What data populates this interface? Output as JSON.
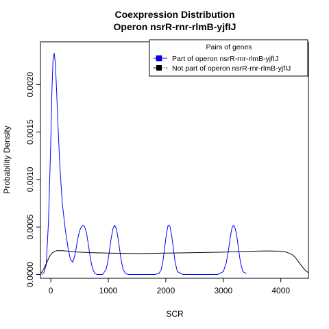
{
  "chart_data": {
    "type": "line",
    "title": "Coexpression Distribution",
    "subtitle": "Operon nsrR-rnr-rlmB-yjfIJ",
    "xlabel": "SCR",
    "ylabel": "Probability Density",
    "xlim": [
      -180,
      4480
    ],
    "ylim": [
      -4e-05,
      0.00245
    ],
    "x_ticks": [
      0,
      1000,
      2000,
      3000,
      4000
    ],
    "x_tick_labels": [
      "0",
      "1000",
      "2000",
      "3000",
      "4000"
    ],
    "y_ticks": [
      0,
      0.0005,
      0.001,
      0.0015,
      0.002
    ],
    "y_tick_labels": [
      "0.0000",
      "0.0005",
      "0.0010",
      "0.0015",
      "0.0020"
    ],
    "grid": false,
    "legend": {
      "title": "Pairs of genes",
      "position": "top-right",
      "entries": [
        "Part of operon nsrR-rnr-rlmB-yjfIJ",
        "Not part of operon nsrR-rnr-rlmB-yjfIJ"
      ]
    },
    "series": [
      {
        "name": "Part of operon nsrR-rnr-rlmB-yjfIJ",
        "color": "#0000ff",
        "x": [
          -160,
          -120,
          -80,
          -40,
          0,
          20,
          40,
          60,
          80,
          100,
          130,
          160,
          200,
          250,
          300,
          340,
          380,
          410,
          440,
          470,
          500,
          530,
          560,
          590,
          620,
          650,
          680,
          710,
          740,
          770,
          800,
          850,
          900,
          960,
          990,
          1020,
          1050,
          1080,
          1110,
          1140,
          1170,
          1200,
          1230,
          1260,
          1300,
          1350,
          1400,
          1500,
          1600,
          1700,
          1800,
          1880,
          1920,
          1950,
          1980,
          2010,
          2040,
          2070,
          2100,
          2130,
          2160,
          2200,
          2300,
          2400,
          2500,
          2600,
          2700,
          2800,
          2900,
          3000,
          3050,
          3090,
          3120,
          3150,
          3180,
          3210,
          3240,
          3270,
          3300,
          3340,
          3400
        ],
        "y": [
          0,
          2e-05,
          0.0001,
          0.00055,
          0.0014,
          0.00195,
          0.00228,
          0.00233,
          0.00222,
          0.00195,
          0.0015,
          0.00112,
          0.00075,
          0.00048,
          0.00028,
          0.00016,
          0.00013,
          0.00018,
          0.00027,
          0.00038,
          0.00046,
          0.0005,
          0.00052,
          0.0005,
          0.00044,
          0.00033,
          0.0002,
          0.0001,
          4e-05,
          1e-05,
          0,
          0,
          0,
          5e-05,
          0.00013,
          0.00025,
          0.00038,
          0.00048,
          0.00052,
          0.00048,
          0.00038,
          0.00025,
          0.00013,
          5e-05,
          1e-05,
          0,
          0,
          0,
          0,
          0,
          0,
          1e-05,
          5e-05,
          0.00014,
          0.00028,
          0.00043,
          0.00052,
          0.00051,
          0.00042,
          0.00028,
          0.00014,
          3e-05,
          0,
          0,
          0,
          0,
          0,
          0,
          0,
          3e-05,
          0.00012,
          0.00026,
          0.00039,
          0.00049,
          0.00052,
          0.00048,
          0.00038,
          0.00024,
          0.00012,
          3e-05,
          1e-05
        ]
      },
      {
        "name": "Not part of operon nsrR-rnr-rlmB-yjfIJ",
        "color": "#000000",
        "x": [
          -180,
          -150,
          -120,
          -90,
          -60,
          -30,
          0,
          30,
          60,
          100,
          150,
          200,
          250,
          300,
          400,
          500,
          700,
          1000,
          1500,
          2000,
          2500,
          3000,
          3500,
          3800,
          4000,
          4100,
          4200,
          4250,
          4300,
          4350,
          4400,
          4450,
          4480
        ],
        "y": [
          1e-05,
          3e-05,
          6e-05,
          0.0001,
          0.00014,
          0.00018,
          0.00021,
          0.00023,
          0.00024,
          0.00025,
          0.00025,
          0.00025,
          0.000248,
          0.000246,
          0.00024,
          0.000235,
          0.00023,
          0.000225,
          0.00022,
          0.000225,
          0.00023,
          0.000235,
          0.000245,
          0.000248,
          0.000245,
          0.000235,
          0.00021,
          0.00018,
          0.00014,
          0.0001,
          6e-05,
          3e-05,
          2e-05
        ]
      }
    ]
  }
}
